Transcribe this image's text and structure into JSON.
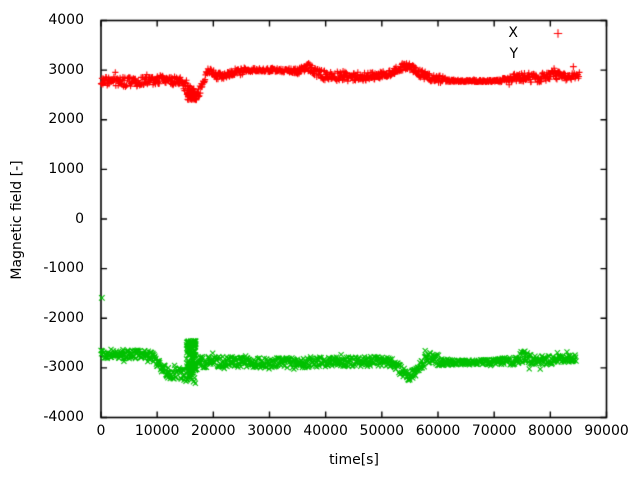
{
  "figure": {
    "background_color": "#ffffff",
    "axis_color": "#000000",
    "text_color": "#000000"
  },
  "chart_data": {
    "type": "scatter",
    "title": "",
    "xlabel": "time[s]",
    "ylabel": "Magnetic field [-]",
    "xlim": [
      0,
      90000
    ],
    "ylim": [
      -4000,
      4000
    ],
    "xticks": [
      0,
      10000,
      20000,
      30000,
      40000,
      50000,
      60000,
      70000,
      80000,
      90000
    ],
    "yticks": [
      -4000,
      -3000,
      -2000,
      -1000,
      0,
      1000,
      2000,
      3000,
      4000
    ],
    "grid": false,
    "legend_position": "top-right-inside",
    "keypoints_schema": [
      "time_s",
      "value",
      "noise_half_amplitude"
    ],
    "series": [
      {
        "name": "X",
        "color": "#ff0000",
        "marker": "plus",
        "legend_marker": true,
        "sample_step_s": 85,
        "keypoints": [
          [
            0,
            2790,
            100
          ],
          [
            3000,
            2770,
            105
          ],
          [
            6000,
            2760,
            100
          ],
          [
            9000,
            2785,
            90
          ],
          [
            11000,
            2820,
            85
          ],
          [
            13000,
            2780,
            90
          ],
          [
            14500,
            2745,
            110
          ],
          [
            15400,
            2640,
            160
          ],
          [
            16200,
            2490,
            130
          ],
          [
            16900,
            2430,
            90
          ],
          [
            17500,
            2560,
            110
          ],
          [
            18300,
            2810,
            90
          ],
          [
            19100,
            2995,
            70
          ],
          [
            19900,
            2945,
            70
          ],
          [
            20900,
            2865,
            80
          ],
          [
            22000,
            2890,
            75
          ],
          [
            23500,
            2940,
            60
          ],
          [
            25300,
            2995,
            45
          ],
          [
            28000,
            3005,
            40
          ],
          [
            31000,
            3005,
            40
          ],
          [
            33500,
            2995,
            45
          ],
          [
            34800,
            2975,
            60
          ],
          [
            36000,
            3020,
            80
          ],
          [
            36900,
            3065,
            95
          ],
          [
            38000,
            2975,
            95
          ],
          [
            39500,
            2905,
            100
          ],
          [
            41000,
            2865,
            95
          ],
          [
            43000,
            2875,
            90
          ],
          [
            45000,
            2850,
            90
          ],
          [
            47000,
            2868,
            82
          ],
          [
            49000,
            2880,
            75
          ],
          [
            51000,
            2920,
            72
          ],
          [
            52600,
            3010,
            70
          ],
          [
            54000,
            3090,
            70
          ],
          [
            55200,
            3055,
            70
          ],
          [
            56500,
            2955,
            80
          ],
          [
            58000,
            2868,
            95
          ],
          [
            59500,
            2838,
            100
          ],
          [
            61000,
            2800,
            70
          ],
          [
            62000,
            2788,
            25
          ],
          [
            64500,
            2782,
            20
          ],
          [
            67000,
            2780,
            20
          ],
          [
            69500,
            2782,
            22
          ],
          [
            71200,
            2792,
            35
          ],
          [
            73000,
            2832,
            70
          ],
          [
            74500,
            2872,
            92
          ],
          [
            76000,
            2862,
            100
          ],
          [
            77500,
            2832,
            92
          ],
          [
            79000,
            2866,
            92
          ],
          [
            80500,
            2906,
            95
          ],
          [
            82000,
            2872,
            88
          ],
          [
            83500,
            2860,
            72
          ],
          [
            85200,
            2900,
            60
          ]
        ],
        "bursts": [
          {
            "t0": 15400,
            "t1": 16800,
            "vmin": 2395,
            "vmax": 2650,
            "count": 60,
            "bias": 0.7
          }
        ],
        "outliers": [
          [
            84100,
            3070
          ]
        ]
      },
      {
        "name": "Y",
        "color": "#00c000",
        "marker": "cross",
        "legend_marker": false,
        "sample_step_s": 85,
        "keypoints": [
          [
            0,
            -2715,
            90
          ],
          [
            3000,
            -2722,
            92
          ],
          [
            6000,
            -2726,
            90
          ],
          [
            8600,
            -2742,
            90
          ],
          [
            9800,
            -2852,
            100
          ],
          [
            10800,
            -3002,
            110
          ],
          [
            11800,
            -3098,
            120
          ],
          [
            12800,
            -3140,
            130
          ],
          [
            13800,
            -3118,
            140
          ],
          [
            14800,
            -3168,
            130
          ],
          [
            15600,
            -3140,
            120
          ],
          [
            16300,
            -2980,
            150
          ],
          [
            17200,
            -2892,
            140
          ],
          [
            18500,
            -2882,
            112
          ],
          [
            20000,
            -2880,
            110
          ],
          [
            22000,
            -2876,
            108
          ],
          [
            24000,
            -2886,
            102
          ],
          [
            26000,
            -2890,
            100
          ],
          [
            28000,
            -2896,
            104
          ],
          [
            30000,
            -2906,
            108
          ],
          [
            32000,
            -2896,
            100
          ],
          [
            34000,
            -2900,
            100
          ],
          [
            36000,
            -2890,
            104
          ],
          [
            38000,
            -2880,
            108
          ],
          [
            40000,
            -2886,
            100
          ],
          [
            42000,
            -2866,
            100
          ],
          [
            44000,
            -2876,
            104
          ],
          [
            46000,
            -2880,
            100
          ],
          [
            48000,
            -2870,
            92
          ],
          [
            50000,
            -2864,
            95
          ],
          [
            52000,
            -2906,
            95
          ],
          [
            53500,
            -3062,
            100
          ],
          [
            54800,
            -3172,
            90
          ],
          [
            56000,
            -3082,
            92
          ],
          [
            57200,
            -2922,
            100
          ],
          [
            58300,
            -2792,
            122
          ],
          [
            59500,
            -2812,
            130
          ],
          [
            60800,
            -2872,
            100
          ],
          [
            62000,
            -2892,
            55
          ],
          [
            64500,
            -2890,
            50
          ],
          [
            67000,
            -2892,
            50
          ],
          [
            69500,
            -2882,
            55
          ],
          [
            71500,
            -2870,
            65
          ],
          [
            73500,
            -2856,
            88
          ],
          [
            75300,
            -2762,
            135
          ],
          [
            76800,
            -2822,
            110
          ],
          [
            78500,
            -2850,
            95
          ],
          [
            80500,
            -2840,
            90
          ],
          [
            82500,
            -2822,
            80
          ],
          [
            84600,
            -2806,
            70
          ]
        ],
        "bursts": [
          {
            "t0": 15200,
            "t1": 16900,
            "vmin": -3320,
            "vmax": -2455,
            "count": 120,
            "bias": 1.9
          }
        ],
        "outliers": [
          [
            150,
            -1590
          ]
        ]
      }
    ]
  }
}
